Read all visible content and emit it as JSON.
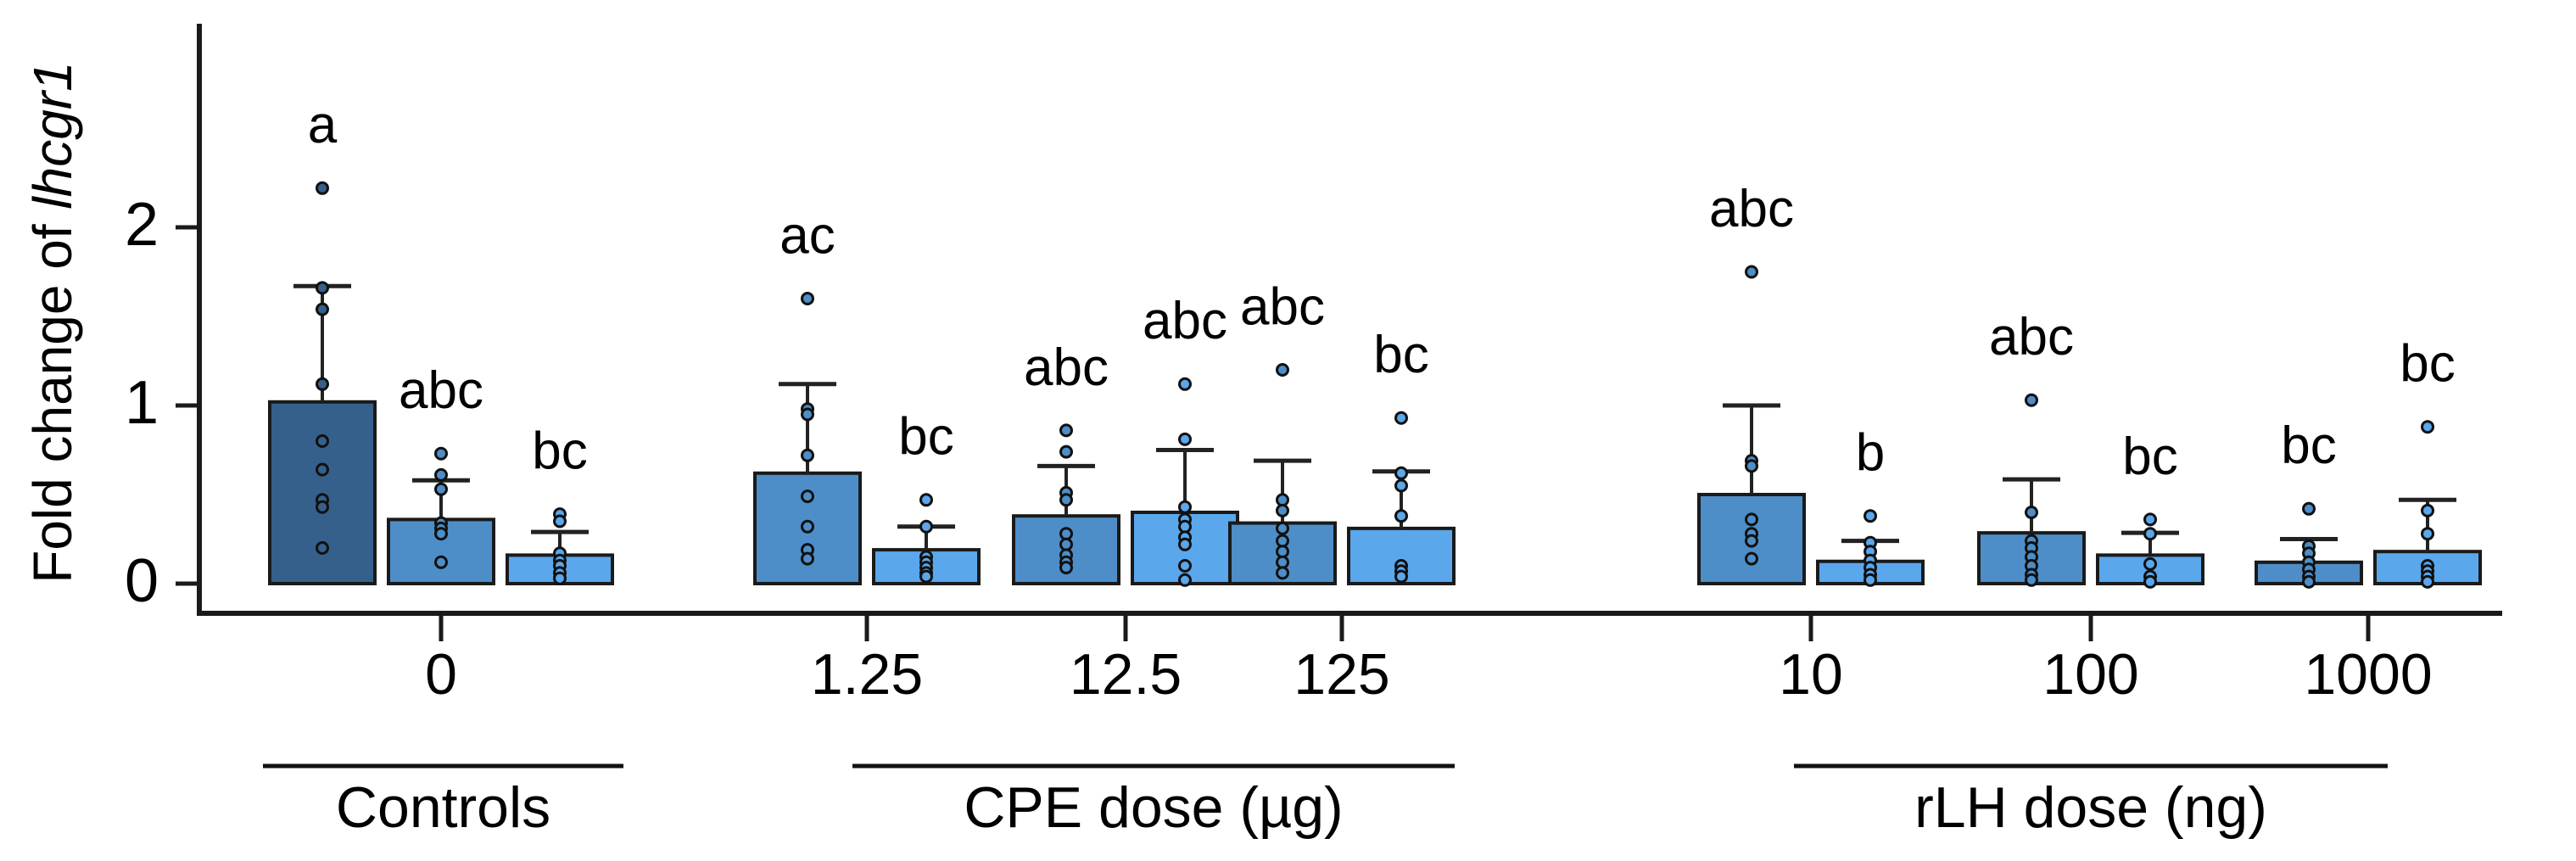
{
  "chart_data": {
    "type": "bar",
    "title": "",
    "ylabel_plain": "Fold change of ",
    "ylabel_italic": "lhcgr1",
    "xlabel": "",
    "y_ticks": [
      0,
      1,
      2
    ],
    "ylim": [
      0,
      3.14
    ],
    "grid": false,
    "legend": null,
    "bar_colors": {
      "dark": "#35608c",
      "medium": "#4d8ec9",
      "light": "#5aa7ec"
    },
    "axis_color": "#1a1a1a",
    "point_stroke": "#111111",
    "groups": [
      {
        "label": "0",
        "section": "Controls",
        "bars": [
          {
            "color": "dark",
            "mean": 1.02,
            "sd_top": 1.67,
            "sig": "a",
            "points": [
              2.22,
              1.66,
              1.54,
              1.12,
              0.8,
              0.64,
              0.47,
              0.43,
              0.2
            ]
          },
          {
            "color": "medium",
            "mean": 0.36,
            "sd_top": 0.58,
            "sig": "abc",
            "points": [
              0.73,
              0.61,
              0.53,
              0.34,
              0.31,
              0.28,
              0.12
            ]
          },
          {
            "color": "light",
            "mean": 0.16,
            "sd_top": 0.29,
            "sig": "bc",
            "points": [
              0.39,
              0.35,
              0.17,
              0.13,
              0.1,
              0.06,
              0.03
            ]
          }
        ]
      },
      {
        "label": "1.25",
        "section": "CPE dose (µg)",
        "bars": [
          {
            "color": "medium",
            "mean": 0.62,
            "sd_top": 1.12,
            "sig": "ac",
            "points": [
              1.6,
              0.98,
              0.95,
              0.72,
              0.49,
              0.32,
              0.19,
              0.14
            ]
          },
          {
            "color": "light",
            "mean": 0.19,
            "sd_top": 0.32,
            "sig": "bc",
            "points": [
              0.47,
              0.32,
              0.15,
              0.12,
              0.09,
              0.06,
              0.04
            ]
          }
        ]
      },
      {
        "label": "12.5",
        "section": "CPE dose (µg)",
        "bars": [
          {
            "color": "medium",
            "mean": 0.38,
            "sd_top": 0.66,
            "sig": "abc",
            "points": [
              0.86,
              0.74,
              0.51,
              0.47,
              0.28,
              0.22,
              0.16,
              0.12,
              0.09
            ]
          },
          {
            "color": "light",
            "mean": 0.4,
            "sd_top": 0.75,
            "sig": "abc",
            "points": [
              1.12,
              0.81,
              0.43,
              0.36,
              0.32,
              0.26,
              0.22,
              0.1,
              0.02
            ]
          }
        ]
      },
      {
        "label": "125",
        "section": "CPE dose (µg)",
        "bars": [
          {
            "color": "medium",
            "mean": 0.34,
            "sd_top": 0.69,
            "sig": "abc",
            "points": [
              1.2,
              0.47,
              0.41,
              0.31,
              0.24,
              0.18,
              0.12,
              0.06
            ]
          },
          {
            "color": "light",
            "mean": 0.31,
            "sd_top": 0.63,
            "sig": "bc",
            "points": [
              0.93,
              0.62,
              0.55,
              0.38,
              0.1,
              0.07,
              0.04
            ]
          }
        ]
      },
      {
        "label": "10",
        "section": "rLH dose (ng)",
        "bars": [
          {
            "color": "medium",
            "mean": 0.5,
            "sd_top": 1.0,
            "sig": "abc",
            "points": [
              1.75,
              0.69,
              0.66,
              0.36,
              0.28,
              0.24,
              0.14
            ]
          },
          {
            "color": "light",
            "mean": 0.125,
            "sd_top": 0.24,
            "sig": "b",
            "points": [
              0.38,
              0.23,
              0.18,
              0.13,
              0.09,
              0.05,
              0.02
            ]
          }
        ]
      },
      {
        "label": "100",
        "section": "rLH dose (ng)",
        "bars": [
          {
            "color": "medium",
            "mean": 0.285,
            "sd_top": 0.585,
            "sig": "abc",
            "points": [
              1.03,
              0.4,
              0.24,
              0.2,
              0.15,
              0.1,
              0.05,
              0.02
            ]
          },
          {
            "color": "light",
            "mean": 0.16,
            "sd_top": 0.285,
            "sig": "bc",
            "points": [
              0.36,
              0.28,
              0.11,
              0.04,
              0.01
            ]
          }
        ]
      },
      {
        "label": "1000",
        "section": "rLH dose (ng)",
        "bars": [
          {
            "color": "medium",
            "mean": 0.12,
            "sd_top": 0.25,
            "sig": "bc",
            "points": [
              0.42,
              0.21,
              0.17,
              0.12,
              0.08,
              0.04,
              0.01
            ]
          },
          {
            "color": "light",
            "mean": 0.18,
            "sd_top": 0.47,
            "sig": "bc",
            "points": [
              0.88,
              0.41,
              0.28,
              0.1,
              0.07,
              0.04,
              0.01
            ]
          }
        ]
      }
    ],
    "sections": [
      {
        "label": "Controls"
      },
      {
        "label": "CPE dose (µg)"
      },
      {
        "label": "rLH dose (ng)"
      }
    ]
  }
}
